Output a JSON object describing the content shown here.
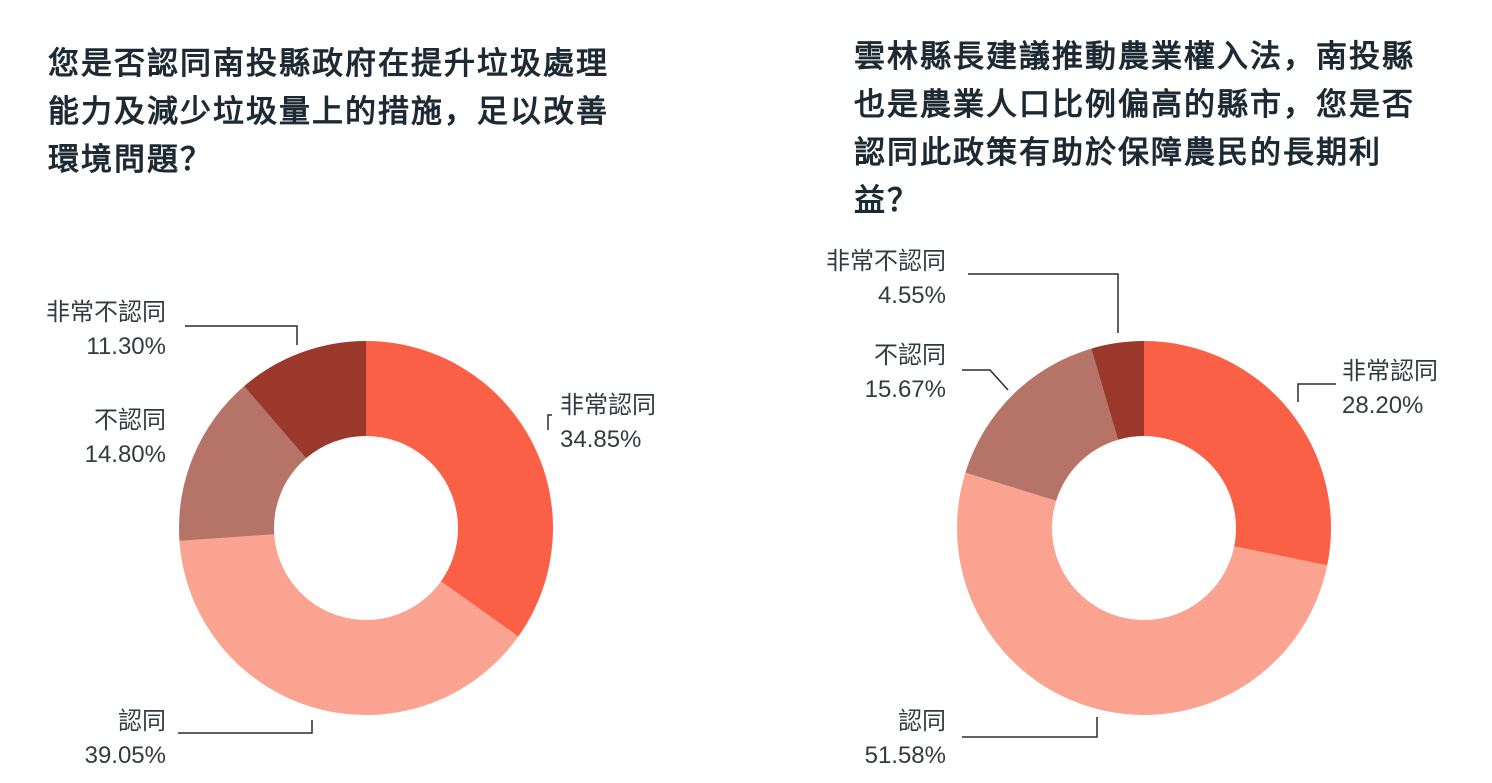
{
  "chart_data": [
    {
      "type": "pie",
      "variant": "donut",
      "title_lines": [
        "您是否認同南投縣政府在提升垃圾處理",
        "能力及減少垃圾量上的措施，足以改善",
        "環境問題？"
      ],
      "categories": [
        "非常認同",
        "認同",
        "不認同",
        "非常不認同"
      ],
      "values": [
        34.85,
        39.05,
        14.8,
        11.3
      ],
      "value_labels": [
        "34.85%",
        "39.05%",
        "14.80%",
        "11.30%"
      ],
      "colors": [
        "#f96045",
        "#fba391",
        "#b67469",
        "#9a382c"
      ]
    },
    {
      "type": "pie",
      "variant": "donut",
      "title_lines": [
        "雲林縣長建議推動農業權入法，南投縣",
        "也是農業人口比例偏高的縣市，您是否",
        "認同此政策有助於保障農民的長期利",
        "益？"
      ],
      "categories": [
        "非常認同",
        "認同",
        "不認同",
        "非常不認同"
      ],
      "values": [
        28.2,
        51.58,
        15.67,
        4.55
      ],
      "value_labels": [
        "28.20%",
        "51.58%",
        "15.67%",
        "4.55%"
      ],
      "colors": [
        "#f96045",
        "#fba391",
        "#b67469",
        "#9a382c"
      ]
    }
  ]
}
